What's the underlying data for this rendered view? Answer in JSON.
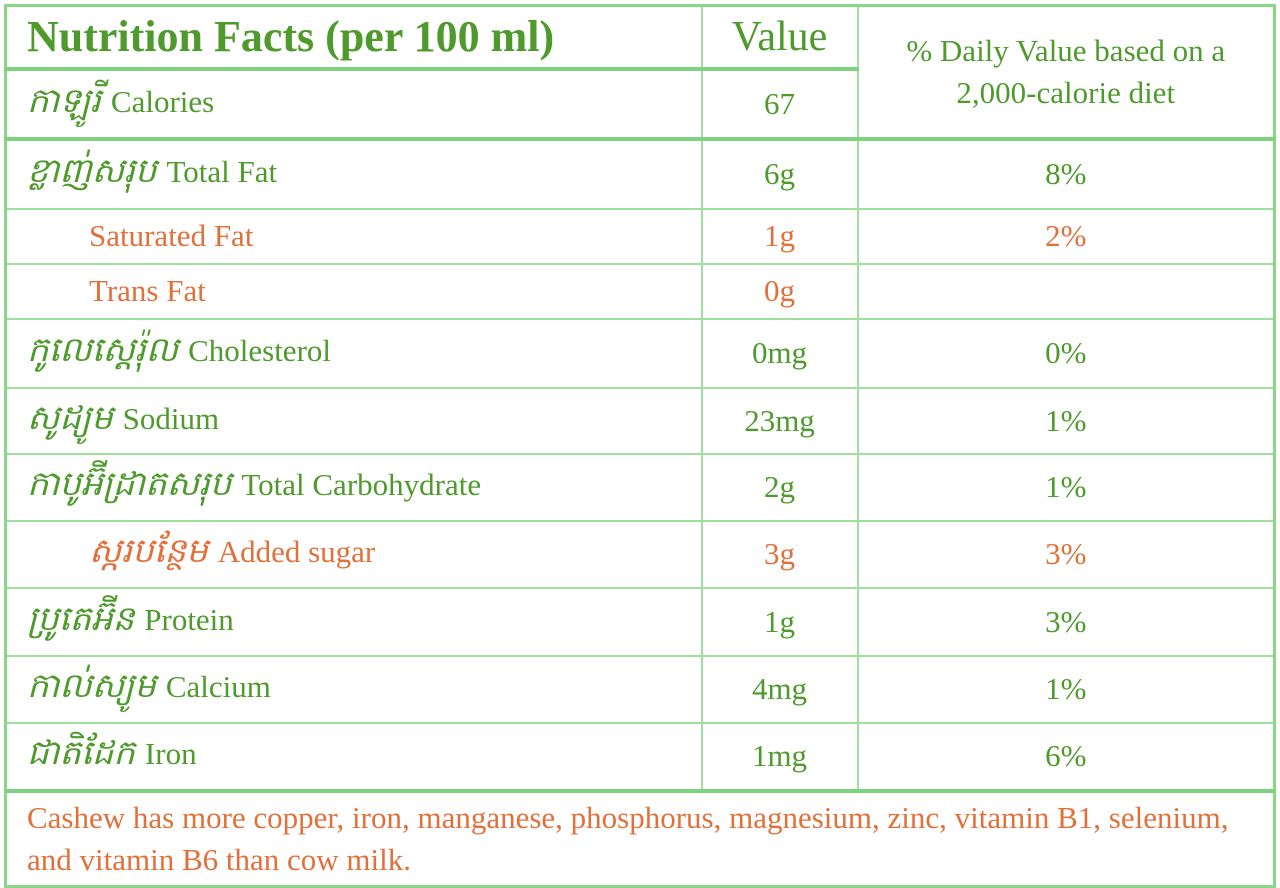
{
  "header": {
    "title": "Nutrition Facts (per 100 ml)",
    "value": "Value",
    "daily_value": "% Daily Value based on a 2,000-calorie diet"
  },
  "rows": [
    {
      "khmer": "កាឡូរី",
      "name": "Calories",
      "value": "67"
    },
    {
      "khmer": "ខ្លាញ់សរុប",
      "name": "Total Fat",
      "value": "6g",
      "daily": "8%"
    },
    {
      "name": "Saturated Fat",
      "value": "1g",
      "daily": "2%"
    },
    {
      "name": "Trans Fat",
      "value": "0g"
    },
    {
      "khmer": "កូលេស្តេរ៉ុល",
      "name": "Cholesterol",
      "value": "0mg",
      "daily": "0%"
    },
    {
      "khmer": "សូដ្យូម",
      "name": "Sodium",
      "value": "23mg",
      "daily": "1%"
    },
    {
      "khmer": "កាបូអ៊ីដ្រាតសរុប",
      "name": "Total Carbohydrate",
      "value": "2g",
      "daily": "1%"
    },
    {
      "khmer": "ស្ករបន្ថែម",
      "name": "Added sugar",
      "value": "3g",
      "daily": "3%"
    },
    {
      "khmer": "ប្រូតេអ៊ីន",
      "name": "Protein",
      "value": "1g",
      "daily": "3%"
    },
    {
      "khmer": "កាល់ស្យូម",
      "name": "Calcium",
      "value": "4mg",
      "daily": "1%"
    },
    {
      "khmer": "ជាតិដែក",
      "name": "Iron",
      "value": "1mg",
      "daily": "6%"
    }
  ],
  "footer": "Cashew has more copper, iron, manganese, phosphorus, magnesium, zinc, vitamin B1, selenium, and vitamin B6 than cow milk."
}
